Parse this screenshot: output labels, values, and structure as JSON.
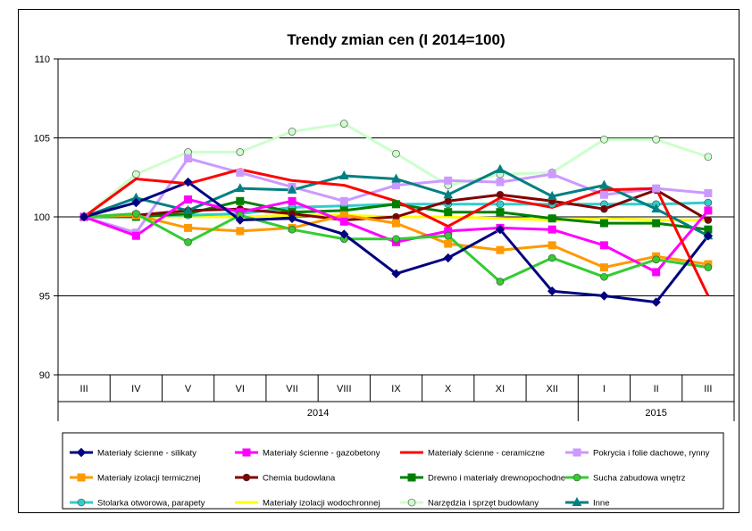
{
  "chart_data": {
    "type": "line",
    "title": "Trendy zmian cen (I 2014=100)",
    "xlabel": "",
    "ylabel": "",
    "ylim": [
      90,
      110
    ],
    "y_ticks": [
      90,
      95,
      100,
      105,
      110
    ],
    "grid": true,
    "categories": [
      "III",
      "IV",
      "V",
      "VI",
      "VII",
      "VIII",
      "IX",
      "X",
      "XI",
      "XII",
      "I",
      "II",
      "III"
    ],
    "year_groups": [
      {
        "label": "2014",
        "span": 10
      },
      {
        "label": "2015",
        "span": 3
      }
    ],
    "legend_position": "bottom",
    "series": [
      {
        "name": "Materiały ścienne - silikaty",
        "color": "#000080",
        "marker": "diamond",
        "values": [
          100,
          100.9,
          102.2,
          99.8,
          99.9,
          98.9,
          96.4,
          97.4,
          99.2,
          95.3,
          95.0,
          94.6,
          98.8
        ]
      },
      {
        "name": "Materiały ścienne - gazobetony",
        "color": "#FF00FF",
        "marker": "square",
        "values": [
          100,
          98.8,
          101.1,
          100.3,
          101.0,
          99.7,
          98.4,
          99.1,
          99.3,
          99.2,
          98.2,
          96.5,
          100.4
        ]
      },
      {
        "name": "Materiały ścienne - ceramiczne",
        "color": "#FF0000",
        "marker": "none",
        "values": [
          100,
          102.4,
          102.1,
          103.0,
          102.3,
          102.0,
          101.0,
          99.4,
          101.2,
          100.6,
          101.7,
          101.8,
          95.0
        ]
      },
      {
        "name": "Pokrycia i folie dachowe, rynny",
        "color": "#CC99FF",
        "marker": "square",
        "values": [
          100,
          99.0,
          103.7,
          102.8,
          101.9,
          101.0,
          102.0,
          102.3,
          102.2,
          102.7,
          101.4,
          101.8,
          101.5
        ]
      },
      {
        "name": "Materiały izolacji termicznej",
        "color": "#FF9900",
        "marker": "square",
        "values": [
          100,
          100.1,
          99.3,
          99.1,
          99.3,
          100.1,
          99.6,
          98.3,
          97.9,
          98.2,
          96.8,
          97.5,
          97.0
        ]
      },
      {
        "name": "Chemia budowlana",
        "color": "#800000",
        "marker": "circle",
        "values": [
          100,
          100.1,
          100.4,
          100.5,
          100.2,
          99.8,
          100.0,
          101.0,
          101.4,
          101.0,
          100.5,
          101.7,
          99.8
        ]
      },
      {
        "name": "Drewno i materiały drewnopochodne",
        "color": "#008000",
        "marker": "square",
        "values": [
          100,
          100.0,
          100.2,
          101.0,
          100.3,
          100.4,
          100.8,
          100.3,
          100.3,
          99.9,
          99.6,
          99.6,
          99.2
        ]
      },
      {
        "name": "Sucha zabudowa wnętrz",
        "color": "#33CC33",
        "marker": "circle",
        "values": [
          100,
          100.2,
          98.4,
          100.1,
          99.2,
          98.6,
          98.6,
          98.8,
          95.9,
          97.4,
          96.2,
          97.3,
          96.8
        ]
      },
      {
        "name": "Stolarka otworowa, parapety",
        "color": "#33CCCC",
        "marker": "circle",
        "values": [
          100,
          100.1,
          100.1,
          100.2,
          100.6,
          100.7,
          100.8,
          100.8,
          100.8,
          100.8,
          100.8,
          100.8,
          100.9
        ]
      },
      {
        "name": "Materiały izolacji wodochronnej",
        "color": "#FFFF00",
        "marker": "none",
        "values": [
          100,
          100.0,
          100.0,
          100.0,
          100.1,
          100.1,
          100.0,
          100.0,
          99.9,
          99.8,
          99.9,
          99.8,
          99.8
        ]
      },
      {
        "name": "Narzędzia i sprzęt budowlany",
        "color": "#CCFFCC",
        "marker": "circle",
        "values": [
          100,
          102.7,
          104.1,
          104.1,
          105.4,
          105.9,
          104.0,
          102.0,
          102.7,
          102.8,
          104.9,
          104.9,
          103.8
        ]
      },
      {
        "name": "Inne",
        "color": "#008080",
        "marker": "triangle",
        "values": [
          100,
          101.2,
          100.4,
          101.8,
          101.7,
          102.6,
          102.4,
          101.4,
          103.0,
          101.3,
          102.0,
          100.5,
          98.8
        ]
      }
    ]
  }
}
